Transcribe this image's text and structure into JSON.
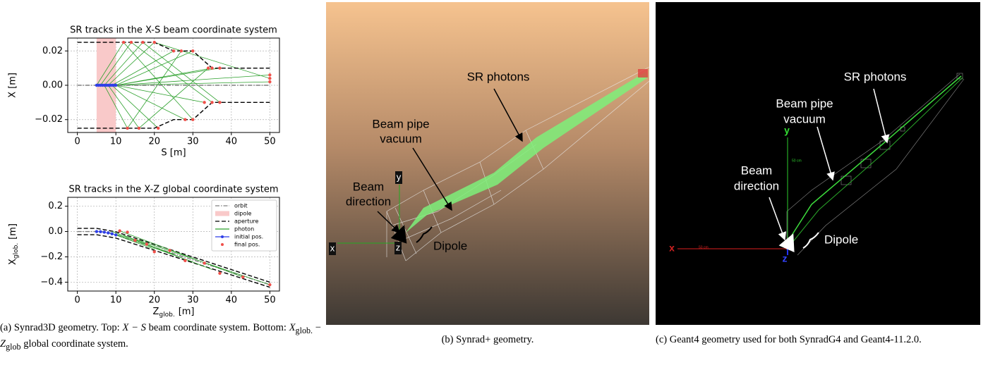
{
  "chart_data": [
    {
      "type": "line",
      "title": "SR tracks in the X-S beam coordinate system",
      "x_label": "S [m]",
      "y_label": "X [m]",
      "xlim": [
        -2.5,
        52.5
      ],
      "ylim": [
        -0.0275,
        0.0275
      ],
      "xticks": [
        0,
        10,
        20,
        30,
        40,
        50
      ],
      "yticks": [
        {
          "value": -0.02,
          "label": "−0.02"
        },
        {
          "value": 0,
          "label": "0.00"
        },
        {
          "value": 0.02,
          "label": "0.02"
        }
      ],
      "grid": true,
      "span": {
        "color": "#f9c9c9",
        "x": [
          5,
          10
        ]
      },
      "series": [
        {
          "color": "#2ca02c",
          "style": "solid",
          "line": true,
          "marker": false,
          "x": [
            5,
            12,
            null,
            6,
            14,
            null,
            7,
            17,
            null,
            8,
            20,
            null,
            9,
            25,
            null,
            10,
            30,
            null,
            10,
            35,
            null,
            10,
            50,
            null,
            10,
            50,
            null,
            7,
            13,
            null,
            8,
            16,
            null,
            9,
            21,
            null,
            10,
            28,
            null,
            10,
            33,
            null,
            10,
            37,
            null,
            12,
            30,
            null,
            14,
            35,
            null,
            17,
            37,
            null,
            20,
            50,
            null,
            16,
            34,
            null,
            13,
            27
          ],
          "values": [
            0,
            0.025,
            null,
            0,
            0.025,
            null,
            0,
            0.025,
            null,
            0,
            0.025,
            null,
            0,
            0.02,
            null,
            0,
            0.02,
            null,
            0,
            0.01,
            null,
            0,
            0.006,
            null,
            0,
            0.002,
            null,
            0,
            -0.025,
            null,
            0,
            -0.025,
            null,
            0,
            -0.025,
            null,
            0,
            -0.02,
            null,
            0,
            -0.01,
            null,
            0,
            0.01,
            null,
            0.025,
            -0.02,
            null,
            0.025,
            -0.01,
            null,
            0.025,
            -0.01,
            null,
            0.025,
            0.004,
            null,
            -0.025,
            0.01,
            null,
            -0.025,
            0.02
          ]
        },
        {
          "color": "#7f7f7f",
          "style": "dashdot",
          "line": true,
          "marker": false,
          "x": [
            0,
            50
          ],
          "values": [
            0,
            0
          ]
        },
        {
          "color": "#000000",
          "style": "dashed",
          "line": true,
          "marker": false,
          "x": [
            0,
            20,
            25,
            30,
            35,
            50,
            null,
            0,
            20,
            25,
            30,
            35,
            50
          ],
          "values": [
            0.025,
            0.025,
            0.02,
            0.02,
            0.01,
            0.01,
            null,
            -0.025,
            -0.025,
            -0.02,
            -0.02,
            -0.01,
            -0.01
          ]
        },
        {
          "color": "#2f3fe8",
          "style": "solid",
          "line": false,
          "marker": true,
          "x": [
            5,
            5.5,
            6,
            6.5,
            7,
            7.5,
            8,
            8.5,
            9,
            9.5,
            10
          ],
          "values": [
            0,
            0,
            0,
            0,
            0,
            0,
            0,
            0,
            0,
            0,
            0
          ]
        },
        {
          "color": "#f0504a",
          "style": "solid",
          "line": false,
          "marker": true,
          "x": [
            12,
            14,
            17,
            20,
            25,
            27,
            30,
            35,
            37,
            34,
            50,
            50,
            50,
            13,
            16,
            21,
            28,
            30,
            33,
            35,
            37
          ],
          "values": [
            0.025,
            0.025,
            0.025,
            0.025,
            0.02,
            0.02,
            0.02,
            0.01,
            0.01,
            0.01,
            0.006,
            0.002,
            0.004,
            -0.025,
            -0.025,
            -0.025,
            -0.02,
            -0.02,
            -0.01,
            -0.01,
            -0.01
          ]
        }
      ]
    },
    {
      "type": "line",
      "title": "SR tracks in the X-Z global coordinate system",
      "x_label": {
        "base": "Z",
        "sub": "glob.",
        "unit": "[m]"
      },
      "y_label": {
        "base": "X",
        "sub": "glob.",
        "unit": "[m]"
      },
      "xlim": [
        -2.5,
        52.5
      ],
      "ylim": [
        -0.47,
        0.27
      ],
      "xticks": [
        0,
        10,
        20,
        30,
        40,
        50
      ],
      "yticks": [
        {
          "value": -0.4,
          "label": "−0.4"
        },
        {
          "value": -0.2,
          "label": "−0.2"
        },
        {
          "value": 0,
          "label": "0.0"
        },
        {
          "value": 0.2,
          "label": "0.2"
        }
      ],
      "grid": true,
      "legend": "upper right",
      "span": {
        "name": "dipole",
        "color": "#f9c9c9"
      },
      "series": [
        {
          "name": "orbit",
          "color": "#7f7f7f",
          "style": "dashdot",
          "line": true,
          "marker": false,
          "x": [
            0,
            5,
            6,
            7,
            8,
            9,
            10,
            50
          ],
          "values": [
            0,
            0,
            -0.0015,
            -0.005,
            -0.011,
            -0.018,
            -0.027,
            -0.42
          ]
        },
        {
          "name": "aperture",
          "color": "#000000",
          "style": "dashed",
          "line": true,
          "marker": false,
          "x": [
            0,
            5,
            10,
            50,
            null,
            0,
            5,
            10,
            50
          ],
          "values": [
            0.025,
            0.025,
            -0.002,
            -0.4,
            null,
            -0.025,
            -0.025,
            -0.052,
            -0.44
          ]
        },
        {
          "name": "photon",
          "color": "#2ca02c",
          "style": "solid",
          "line": true,
          "marker": false,
          "x": [
            8,
            20,
            null,
            10,
            30,
            null,
            12,
            35,
            null,
            15,
            50,
            null,
            9,
            25,
            null,
            11,
            43
          ],
          "values": [
            -0.005,
            -0.14,
            null,
            -0.02,
            -0.24,
            null,
            -0.03,
            -0.3,
            null,
            -0.06,
            -0.42,
            null,
            0,
            -0.18,
            null,
            0.005,
            -0.36
          ]
        },
        {
          "name": "initial pos.",
          "color": "#2f3fe8",
          "style": "solid",
          "line": true,
          "marker": true,
          "x": [
            5,
            6,
            7,
            8,
            9,
            10
          ],
          "values": [
            0,
            -0.0015,
            -0.005,
            -0.011,
            -0.018,
            -0.027
          ]
        },
        {
          "name": "final pos.",
          "color": "#f0504a",
          "style": "solid",
          "line": false,
          "marker": true,
          "x": [
            11,
            13,
            15,
            18,
            20,
            24,
            28,
            33,
            37,
            43,
            50
          ],
          "values": [
            0.005,
            -0.005,
            -0.07,
            -0.1,
            -0.16,
            -0.15,
            -0.23,
            -0.25,
            -0.33,
            -0.36,
            -0.42
          ]
        }
      ]
    }
  ],
  "panel_b": {
    "sr_photons": "SR photons",
    "beam_pipe": [
      "Beam pipe",
      "vacuum"
    ],
    "beam_direction": [
      "Beam",
      "direction"
    ],
    "dipole": "Dipole",
    "axes": [
      "x",
      "y",
      "z"
    ]
  },
  "panel_c": {
    "sr_photons": "SR photons",
    "beam_pipe": [
      "Beam pipe",
      "vacuum"
    ],
    "beam_direction": [
      "Beam",
      "direction"
    ],
    "dipole": "Dipole",
    "axes": [
      "x",
      "y",
      "z"
    ],
    "scale": [
      "50 cm",
      "50 cm"
    ]
  },
  "captions": {
    "a": [
      "(a) Synrad3D geometry. Top: ",
      "X − S",
      " beam coordinate system. Bottom: ",
      "X",
      "glob.",
      " − ",
      "Z",
      "glob",
      " global coordinate system."
    ],
    "b": "(b) Synrad+ geometry.",
    "c": "(c) Geant4 geometry used for both SynradG4 and Geant4-11.2.0."
  }
}
